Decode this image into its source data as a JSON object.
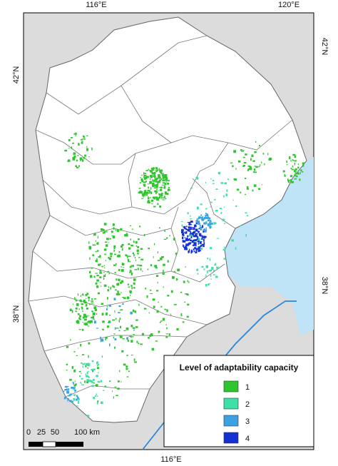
{
  "map": {
    "top_labels": [
      "116°E",
      "120°E"
    ],
    "bottom_labels": [
      "116°E"
    ],
    "left_labels": [
      "42°N",
      "38°N"
    ],
    "right_labels": [
      "42°N",
      "38°N"
    ],
    "scale_bar": [
      "0",
      "25",
      "50",
      "100 km"
    ],
    "legend": {
      "title": "Level of adaptability capacity",
      "items": [
        {
          "label": "1",
          "color": "#2ec52e"
        },
        {
          "label": "2",
          "color": "#3fe0a8"
        },
        {
          "label": "3",
          "color": "#3aa2e2"
        },
        {
          "label": "4",
          "color": "#1530d0"
        }
      ]
    }
  }
}
